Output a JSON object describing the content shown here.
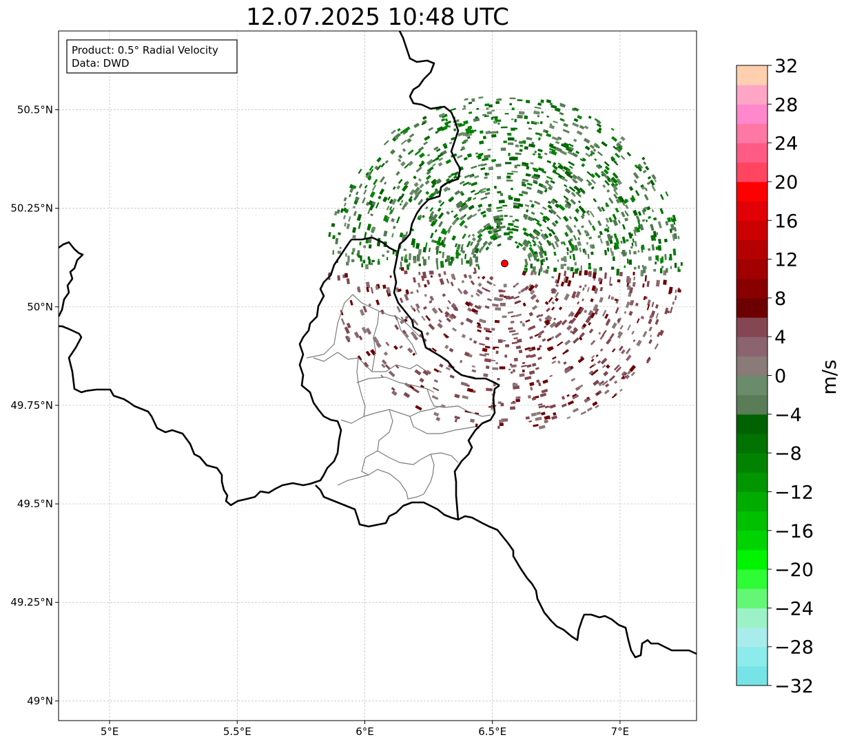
{
  "title": "12.07.2025 10:48 UTC",
  "info_box": {
    "product": "Product: 0.5° Radial Velocity",
    "data": "Data: DWD"
  },
  "map": {
    "lon_range": [
      4.8,
      7.3
    ],
    "lat_range": [
      48.95,
      50.7
    ],
    "x_ticks": [
      {
        "value": 5.0,
        "label": "5°E"
      },
      {
        "value": 5.5,
        "label": "5.5°E"
      },
      {
        "value": 6.0,
        "label": "6°E"
      },
      {
        "value": 6.5,
        "label": "6.5°E"
      },
      {
        "value": 7.0,
        "label": "7°E"
      }
    ],
    "y_ticks": [
      {
        "value": 49.0,
        "label": "49°N"
      },
      {
        "value": 49.25,
        "label": "49.25°N"
      },
      {
        "value": 49.5,
        "label": "49.5°N"
      },
      {
        "value": 49.75,
        "label": "49.75°N"
      },
      {
        "value": 50.0,
        "label": "50°N"
      },
      {
        "value": 50.25,
        "label": "50.25°N"
      },
      {
        "value": 50.5,
        "label": "50.5°N"
      }
    ],
    "grid": true,
    "radar_site": {
      "lon": 6.548,
      "lat": 50.11,
      "color": "#ff0000"
    }
  },
  "colorbar": {
    "label": "m/s",
    "min": -32,
    "max": 32,
    "ticks": [
      -32,
      -28,
      -24,
      -20,
      -16,
      -12,
      -8,
      -4,
      0,
      4,
      8,
      12,
      16,
      20,
      24,
      28,
      32
    ],
    "tick_labels": [
      "−32",
      "−28",
      "−24",
      "−20",
      "−16",
      "−12",
      "−8",
      "−4",
      "0",
      "4",
      "8",
      "12",
      "16",
      "20",
      "24",
      "28",
      "32"
    ],
    "colors": [
      "#76e3e6",
      "#8cebeb",
      "#a8ecec",
      "#9cf2c6",
      "#63f775",
      "#2efc35",
      "#00f400",
      "#00d400",
      "#00c000",
      "#00ac00",
      "#009600",
      "#008400",
      "#007200",
      "#006200",
      "#5a7d57",
      "#6a8c6a",
      "#8a7a78",
      "#8c6470",
      "#844650",
      "#6c0000",
      "#880000",
      "#a00000",
      "#b40000",
      "#cc0000",
      "#e00006",
      "#ff0000",
      "#ff4560",
      "#ff5b84",
      "#ff77a4",
      "#ff88cc",
      "#ffa6c6",
      "#ffcfaf"
    ]
  }
}
